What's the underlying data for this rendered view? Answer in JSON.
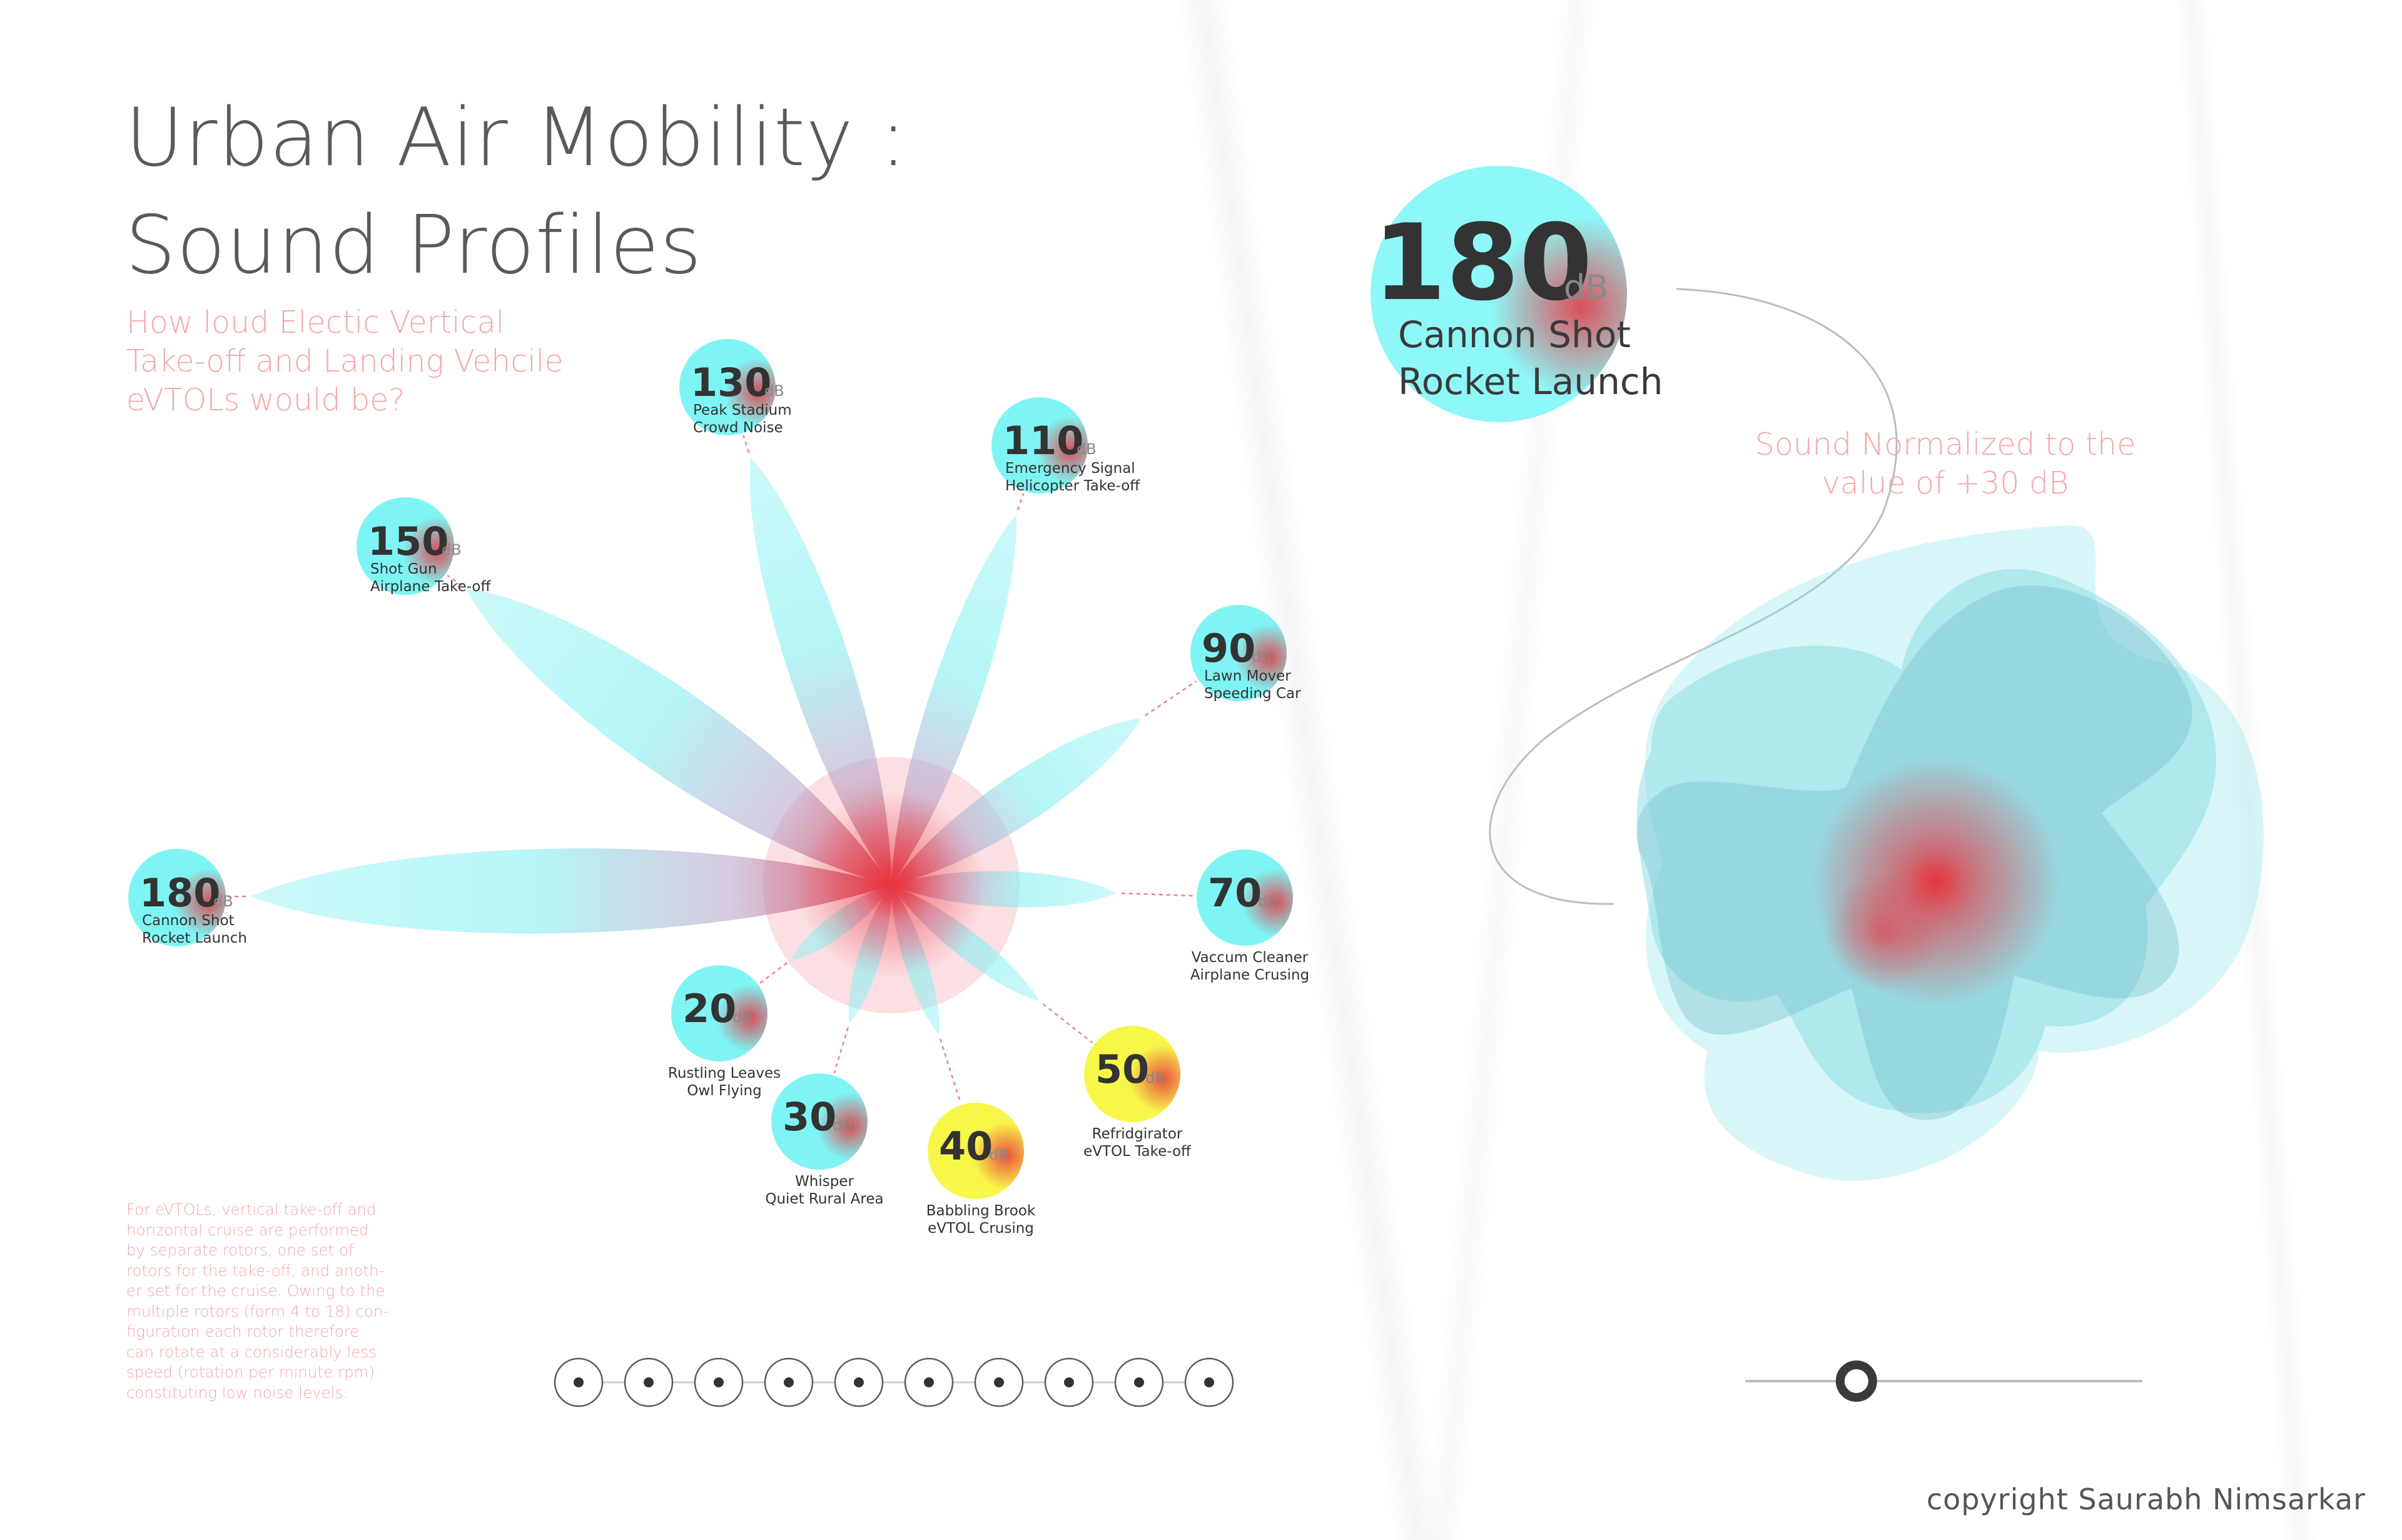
{
  "title": "Urban Air Mobility :\nSound Profiles",
  "subtitle": "How loud Electic Vertical\nTake-off and Landing Vehcile\neVTOLs would be?",
  "note": "For eVTOLs, vertical take-off and\nhorizontal cruise are performed\nby separate rotors, one set of\nrotors for the take-off, and anoth-\ner set for the cruise. Owing to the\nmultiple rotors (form 4 to 18) con-\nfiguration each rotor therefore\ncan rotate at a considerably less\nspeed (rotation per minute rpm)\nconstituting low noise levels.",
  "normalized_note": "Sound Normalized to the\nvalue of  +30 dB",
  "copyright": "copyright Saurabh Nimsarkar",
  "unit": "dB",
  "colors": {
    "bubble": "#7ff4f4",
    "bubble_evtol": "#f7f74a",
    "accent": "#e8323c",
    "petal": "#8ef1f3",
    "text_pink": "#f4a9a9"
  },
  "selected": {
    "value": "180",
    "unit": "dB",
    "line1": "Cannon Shot",
    "line2": "Rocket Launch"
  },
  "nodes": [
    {
      "id": "n180",
      "value": "180",
      "line1": "Cannon Shot",
      "line2": "Rocket Launch",
      "evtol": false
    },
    {
      "id": "n150",
      "value": "150",
      "line1": "Shot Gun",
      "line2": "Airplane Take-off",
      "evtol": false
    },
    {
      "id": "n130",
      "value": "130",
      "line1": "Peak Stadium",
      "line2": "Crowd Noise",
      "evtol": false
    },
    {
      "id": "n110",
      "value": "110",
      "line1": "Emergency Signal",
      "line2": "Helicopter Take-off",
      "evtol": false
    },
    {
      "id": "n90",
      "value": "90",
      "line1": "Lawn Mover",
      "line2": "Speeding Car",
      "evtol": false
    },
    {
      "id": "n70",
      "value": "70",
      "line1": "Vaccum Cleaner",
      "line2": "Airplane Crusing",
      "evtol": false
    },
    {
      "id": "n50",
      "value": "50",
      "line1": "Refridgirator",
      "line2": "eVTOL Take-off",
      "evtol": true
    },
    {
      "id": "n40",
      "value": "40",
      "line1": "Babbling Brook",
      "line2": "eVTOL Crusing",
      "evtol": true
    },
    {
      "id": "n30",
      "value": "30",
      "line1": "Whisper",
      "line2": "Quiet Rural Area",
      "evtol": false
    },
    {
      "id": "n20",
      "value": "20",
      "line1": "Rustling Leaves",
      "line2": "Owl Flying",
      "evtol": false
    }
  ],
  "pagination": {
    "count": 10,
    "selected_index": 0
  },
  "slider": {
    "position": 0.28
  }
}
